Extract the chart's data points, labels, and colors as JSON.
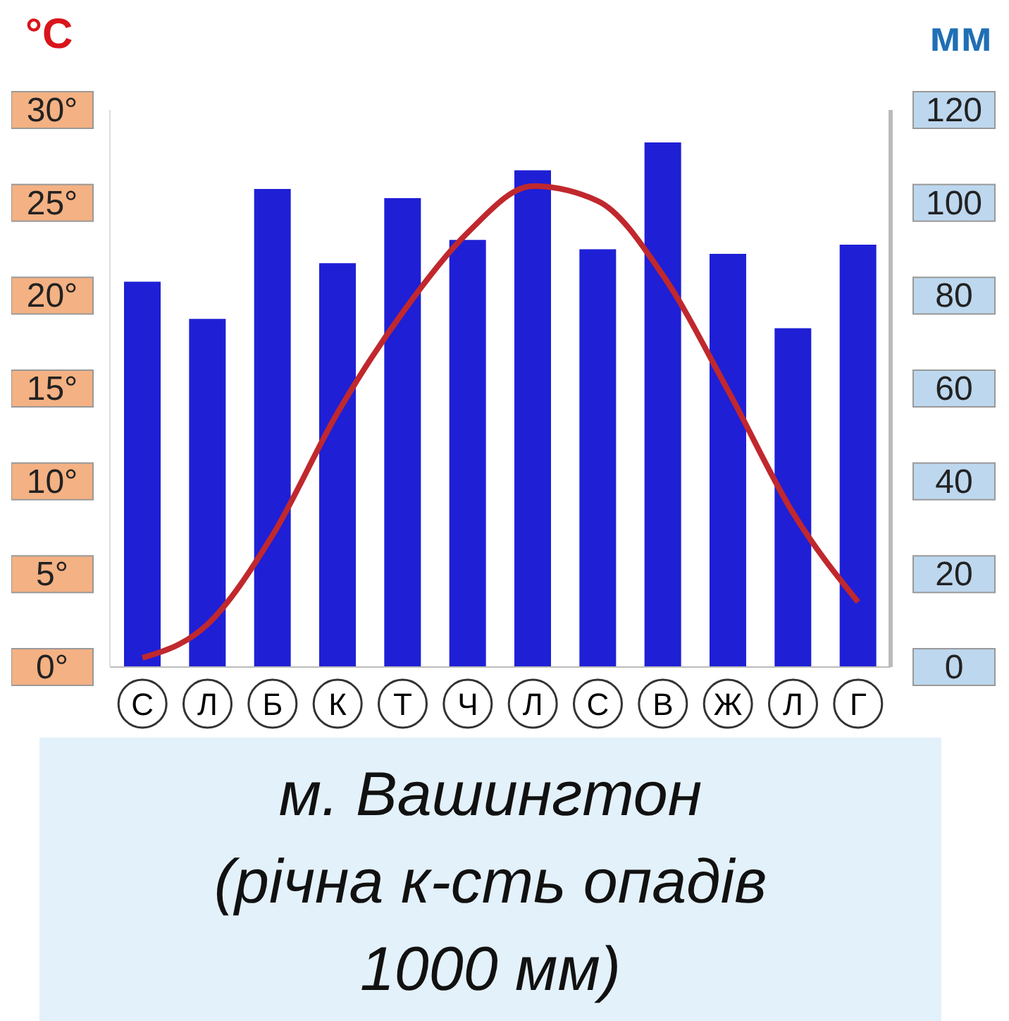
{
  "chart_data": {
    "type": "bar",
    "title": "м. Вашингтон\n(річна к-сть опадів\n1000 мм)",
    "ylabel": "°C",
    "y2label": "мм",
    "categories": [
      "С",
      "Л",
      "Б",
      "К",
      "Т",
      "Ч",
      "Л",
      "С",
      "В",
      "Ж",
      "Л",
      "Г"
    ],
    "series": [
      {
        "axis": "y2",
        "color": "#1f1fd6",
        "values": [
          83,
          75,
          103,
          87,
          101,
          92,
          107,
          90,
          113,
          89,
          73,
          91
        ]
      },
      {
        "type": "line",
        "axis": "y",
        "color": "#c0282d",
        "values": [
          0.5,
          2.3,
          7.1,
          13.7,
          19.1,
          23.4,
          25.9,
          25.1,
          21.1,
          14.9,
          8.3,
          3.5
        ]
      }
    ],
    "ylim": [
      0,
      30
    ],
    "yticks": [
      {
        "value": 0,
        "label": "0°"
      },
      {
        "value": 5,
        "label": "5°"
      },
      {
        "value": 10,
        "label": "10°"
      },
      {
        "value": 15,
        "label": "15°"
      },
      {
        "value": 20,
        "label": "20°"
      },
      {
        "value": 25,
        "label": "25°"
      },
      {
        "value": 30,
        "label": "30°"
      }
    ],
    "y2lim": [
      0,
      120
    ],
    "y2ticks": [
      0,
      20,
      40,
      60,
      80,
      100,
      120
    ],
    "grid": false,
    "legend": false,
    "marker": "none"
  }
}
